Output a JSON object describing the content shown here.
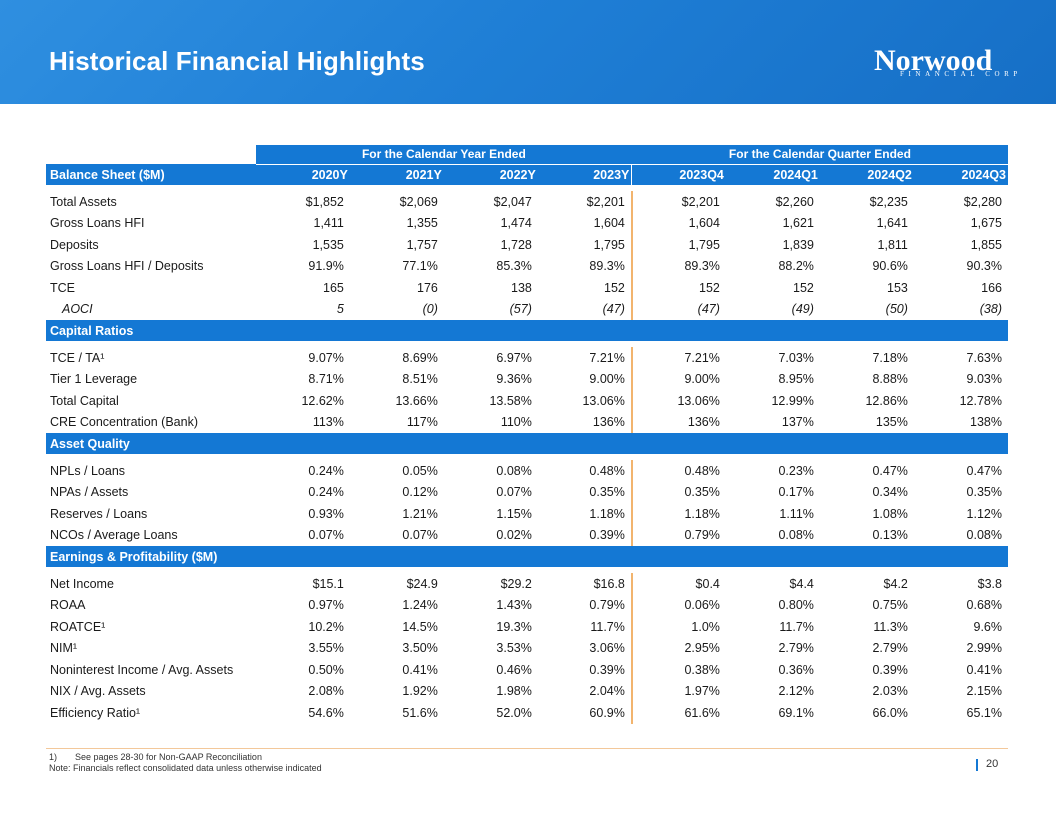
{
  "header": {
    "title": "Historical Financial Highlights",
    "logo_word": "Norwood",
    "logo_sub": "FINANCIAL CORP"
  },
  "table": {
    "group_year": "For the Calendar Year Ended",
    "group_quarter": "For the Calendar Quarter Ended",
    "columns": [
      "Balance Sheet ($M)",
      "2020Y",
      "2021Y",
      "2022Y",
      "2023Y",
      "2023Q4",
      "2024Q1",
      "2024Q2",
      "2024Q3"
    ],
    "balance_sheet": [
      {
        "label": "Total Assets",
        "values": [
          "$1,852",
          "$2,069",
          "$2,047",
          "$2,201",
          "$2,201",
          "$2,260",
          "$2,235",
          "$2,280"
        ]
      },
      {
        "label": "Gross Loans HFI",
        "values": [
          "1,411",
          "1,355",
          "1,474",
          "1,604",
          "1,604",
          "1,621",
          "1,641",
          "1,675"
        ]
      },
      {
        "label": "Deposits",
        "values": [
          "1,535",
          "1,757",
          "1,728",
          "1,795",
          "1,795",
          "1,839",
          "1,811",
          "1,855"
        ]
      },
      {
        "label": "Gross Loans HFI / Deposits",
        "values": [
          "91.9%",
          "77.1%",
          "85.3%",
          "89.3%",
          "89.3%",
          "88.2%",
          "90.6%",
          "90.3%"
        ]
      },
      {
        "label": "TCE",
        "values": [
          "165",
          "176",
          "138",
          "152",
          "152",
          "152",
          "153",
          "166"
        ]
      },
      {
        "label": "AOCI",
        "values": [
          "5",
          "(0)",
          "(57)",
          "(47)",
          "(47)",
          "(49)",
          "(50)",
          "(38)"
        ]
      }
    ],
    "capital_title": "Capital Ratios",
    "capital": [
      {
        "label": "TCE / TA¹",
        "values": [
          "9.07%",
          "8.69%",
          "6.97%",
          "7.21%",
          "7.21%",
          "7.03%",
          "7.18%",
          "7.63%"
        ]
      },
      {
        "label": "Tier 1 Leverage",
        "values": [
          "8.71%",
          "8.51%",
          "9.36%",
          "9.00%",
          "9.00%",
          "8.95%",
          "8.88%",
          "9.03%"
        ]
      },
      {
        "label": "Total Capital",
        "values": [
          "12.62%",
          "13.66%",
          "13.58%",
          "13.06%",
          "13.06%",
          "12.99%",
          "12.86%",
          "12.78%"
        ]
      },
      {
        "label": "CRE Concentration (Bank)",
        "values": [
          "113%",
          "117%",
          "110%",
          "136%",
          "136%",
          "137%",
          "135%",
          "138%"
        ]
      }
    ],
    "asset_title": "Asset Quality",
    "asset": [
      {
        "label": "NPLs / Loans",
        "values": [
          "0.24%",
          "0.05%",
          "0.08%",
          "0.48%",
          "0.48%",
          "0.23%",
          "0.47%",
          "0.47%"
        ]
      },
      {
        "label": "NPAs / Assets",
        "values": [
          "0.24%",
          "0.12%",
          "0.07%",
          "0.35%",
          "0.35%",
          "0.17%",
          "0.34%",
          "0.35%"
        ]
      },
      {
        "label": "Reserves / Loans",
        "values": [
          "0.93%",
          "1.21%",
          "1.15%",
          "1.18%",
          "1.18%",
          "1.11%",
          "1.08%",
          "1.12%"
        ]
      },
      {
        "label": "NCOs / Average Loans",
        "values": [
          "0.07%",
          "0.07%",
          "0.02%",
          "0.39%",
          "0.79%",
          "0.08%",
          "0.13%",
          "0.08%"
        ]
      }
    ],
    "earnings_title": "Earnings & Profitability ($M)",
    "earnings": [
      {
        "label": "Net Income",
        "values": [
          "$15.1",
          "$24.9",
          "$29.2",
          "$16.8",
          "$0.4",
          "$4.4",
          "$4.2",
          "$3.8"
        ]
      },
      {
        "label": "ROAA",
        "values": [
          "0.97%",
          "1.24%",
          "1.43%",
          "0.79%",
          "0.06%",
          "0.80%",
          "0.75%",
          "0.68%"
        ]
      },
      {
        "label": "ROATCE¹",
        "values": [
          "10.2%",
          "14.5%",
          "19.3%",
          "11.7%",
          "1.0%",
          "11.7%",
          "11.3%",
          "9.6%"
        ]
      },
      {
        "label": "NIM¹",
        "values": [
          "3.55%",
          "3.50%",
          "3.53%",
          "3.06%",
          "2.95%",
          "2.79%",
          "2.79%",
          "2.99%"
        ]
      },
      {
        "label": "Noninterest Income / Avg. Assets",
        "values": [
          "0.50%",
          "0.41%",
          "0.46%",
          "0.39%",
          "0.38%",
          "0.36%",
          "0.39%",
          "0.41%"
        ]
      },
      {
        "label": "NIX / Avg. Assets",
        "values": [
          "2.08%",
          "1.92%",
          "1.98%",
          "2.04%",
          "1.97%",
          "2.12%",
          "2.03%",
          "2.15%"
        ]
      },
      {
        "label": "Efficiency Ratio¹",
        "values": [
          "54.6%",
          "51.6%",
          "52.0%",
          "60.9%",
          "61.6%",
          "69.1%",
          "66.0%",
          "65.1%"
        ]
      }
    ]
  },
  "footer": {
    "note1_num": "1)",
    "note1": "See pages 28-30 for Non-GAAP Reconciliation",
    "note2": "Note: Financials reflect consolidated data unless otherwise indicated",
    "page": "20"
  }
}
